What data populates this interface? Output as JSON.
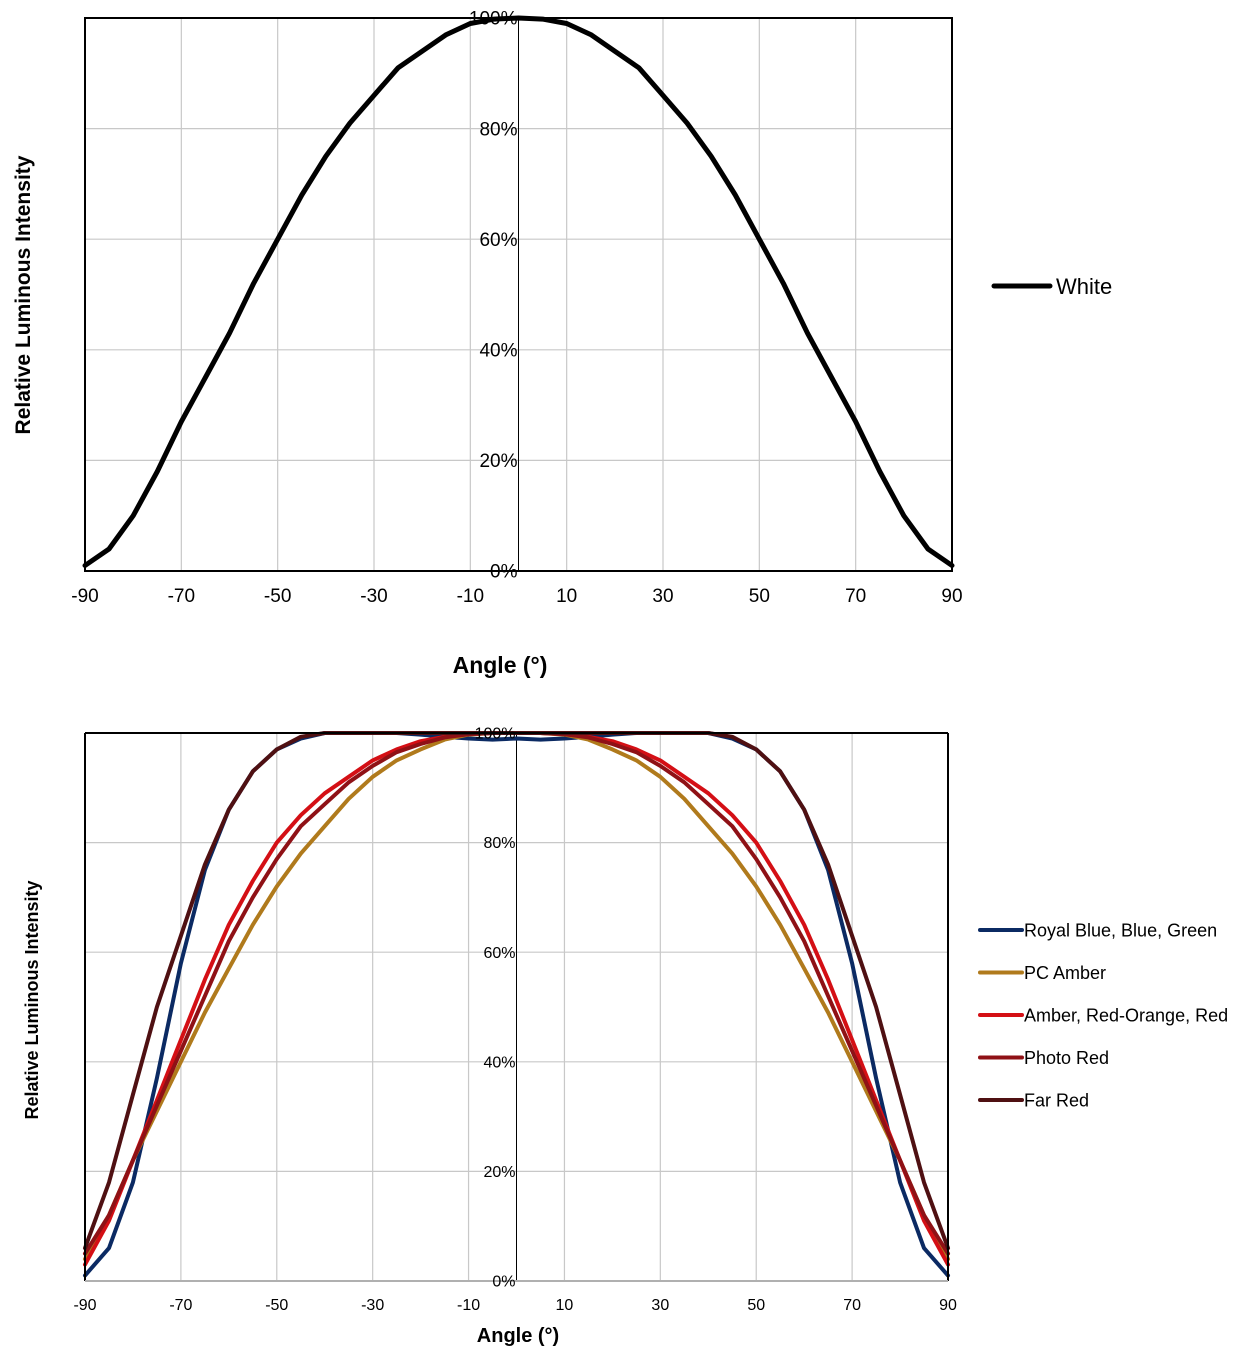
{
  "chart_data": [
    {
      "type": "line",
      "title": "",
      "xlabel": "Angle (°)",
      "ylabel": "Relative Luminous Intensity",
      "xlim": [
        -90,
        90
      ],
      "ylim": [
        0,
        100
      ],
      "x_ticks": [
        "-90",
        "-70",
        "-50",
        "-30",
        "-10",
        "10",
        "30",
        "50",
        "70",
        "90"
      ],
      "y_ticks": [
        "0%",
        "20%",
        "40%",
        "60%",
        "80%",
        "100%"
      ],
      "grid": true,
      "legend_position": "right",
      "x": [
        -90,
        -85,
        -80,
        -75,
        -70,
        -65,
        -60,
        -55,
        -50,
        -45,
        -40,
        -35,
        -30,
        -25,
        -20,
        -15,
        -10,
        -5,
        0,
        5,
        10,
        15,
        20,
        25,
        30,
        35,
        40,
        45,
        50,
        55,
        60,
        65,
        70,
        75,
        80,
        85,
        90
      ],
      "series": [
        {
          "name": "White",
          "color": "#000000",
          "values": [
            1,
            4,
            10,
            18,
            27,
            35,
            43,
            52,
            60,
            68,
            75,
            81,
            86,
            91,
            94,
            97,
            99,
            99.8,
            100,
            99.8,
            99,
            97,
            94,
            91,
            86,
            81,
            75,
            68,
            60,
            52,
            43,
            35,
            27,
            18,
            10,
            4,
            1
          ]
        }
      ]
    },
    {
      "type": "line",
      "title": "",
      "xlabel": "Angle (°)",
      "ylabel": "Relative Luminous Intensity",
      "xlim": [
        -90,
        90
      ],
      "ylim": [
        0,
        100
      ],
      "x_ticks": [
        "-90",
        "-70",
        "-50",
        "-30",
        "-10",
        "10",
        "30",
        "50",
        "70",
        "90"
      ],
      "y_ticks": [
        "0%",
        "20%",
        "40%",
        "60%",
        "80%",
        "100%"
      ],
      "grid": true,
      "legend_position": "right",
      "x": [
        -90,
        -85,
        -80,
        -75,
        -70,
        -65,
        -60,
        -55,
        -50,
        -45,
        -40,
        -35,
        -30,
        -25,
        -20,
        -15,
        -10,
        -5,
        0,
        5,
        10,
        15,
        20,
        25,
        30,
        35,
        40,
        45,
        50,
        55,
        60,
        65,
        70,
        75,
        80,
        85,
        90
      ],
      "series": [
        {
          "name": "Royal Blue, Blue, Green",
          "color": "#0b2a63",
          "values": [
            1,
            6,
            18,
            37,
            58,
            75,
            86,
            93,
            97,
            99,
            100,
            100,
            100,
            100,
            99.7,
            99.3,
            99,
            98.8,
            99,
            98.8,
            99,
            99.3,
            99.7,
            100,
            100,
            100,
            100,
            99,
            97,
            93,
            86,
            75,
            58,
            37,
            18,
            6,
            1
          ]
        },
        {
          "name": "PC Amber",
          "color": "#b07a1c",
          "values": [
            4,
            12,
            22,
            31,
            40,
            49,
            57,
            65,
            72,
            78,
            83,
            88,
            92,
            95,
            97,
            98.8,
            99.7,
            100,
            100,
            100,
            99.7,
            98.8,
            97,
            95,
            92,
            88,
            83,
            78,
            72,
            65,
            57,
            49,
            40,
            31,
            22,
            12,
            4
          ]
        },
        {
          "name": "Amber, Red-Orange, Red",
          "color": "#d40f15",
          "values": [
            3,
            11,
            22,
            33,
            44,
            55,
            65,
            73,
            80,
            85,
            89,
            92,
            95,
            97,
            98.5,
            99.3,
            99.8,
            100,
            100,
            100,
            99.8,
            99.3,
            98.5,
            97,
            95,
            92,
            89,
            85,
            80,
            73,
            65,
            55,
            44,
            33,
            22,
            11,
            3
          ]
        },
        {
          "name": "Photo Red",
          "color": "#8f1116",
          "values": [
            5,
            12,
            22,
            32,
            42,
            52,
            62,
            70,
            77,
            83,
            87,
            91,
            94,
            96.5,
            98,
            99.2,
            99.8,
            100,
            100,
            100,
            99.8,
            99.2,
            98,
            96.5,
            94,
            91,
            87,
            83,
            77,
            70,
            62,
            52,
            42,
            32,
            22,
            12,
            5
          ]
        },
        {
          "name": "Far Red",
          "color": "#4f1012",
          "values": [
            6,
            18,
            34,
            50,
            63,
            76,
            86,
            93,
            97,
            99.3,
            100,
            100,
            100,
            100,
            100,
            100,
            100,
            100,
            100,
            100,
            100,
            100,
            100,
            100,
            100,
            100,
            100,
            99.3,
            97,
            93,
            86,
            76,
            63,
            50,
            34,
            18,
            6
          ]
        }
      ]
    }
  ]
}
